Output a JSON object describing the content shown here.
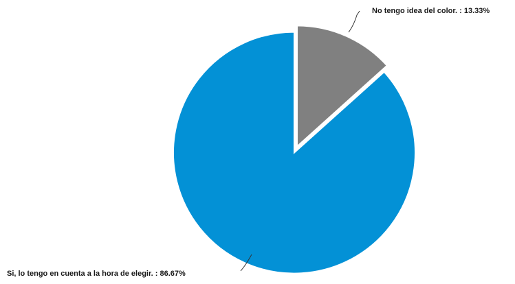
{
  "chart_data": {
    "type": "pie",
    "slices": [
      {
        "label": "No tengo idea del color. : 13.33%",
        "value": 13.33,
        "color": "#808080"
      },
      {
        "label": "Si, lo tengo en cuenta a la hora de elegir. : 86.67%",
        "value": 86.67,
        "color": "#0391d6"
      }
    ]
  }
}
